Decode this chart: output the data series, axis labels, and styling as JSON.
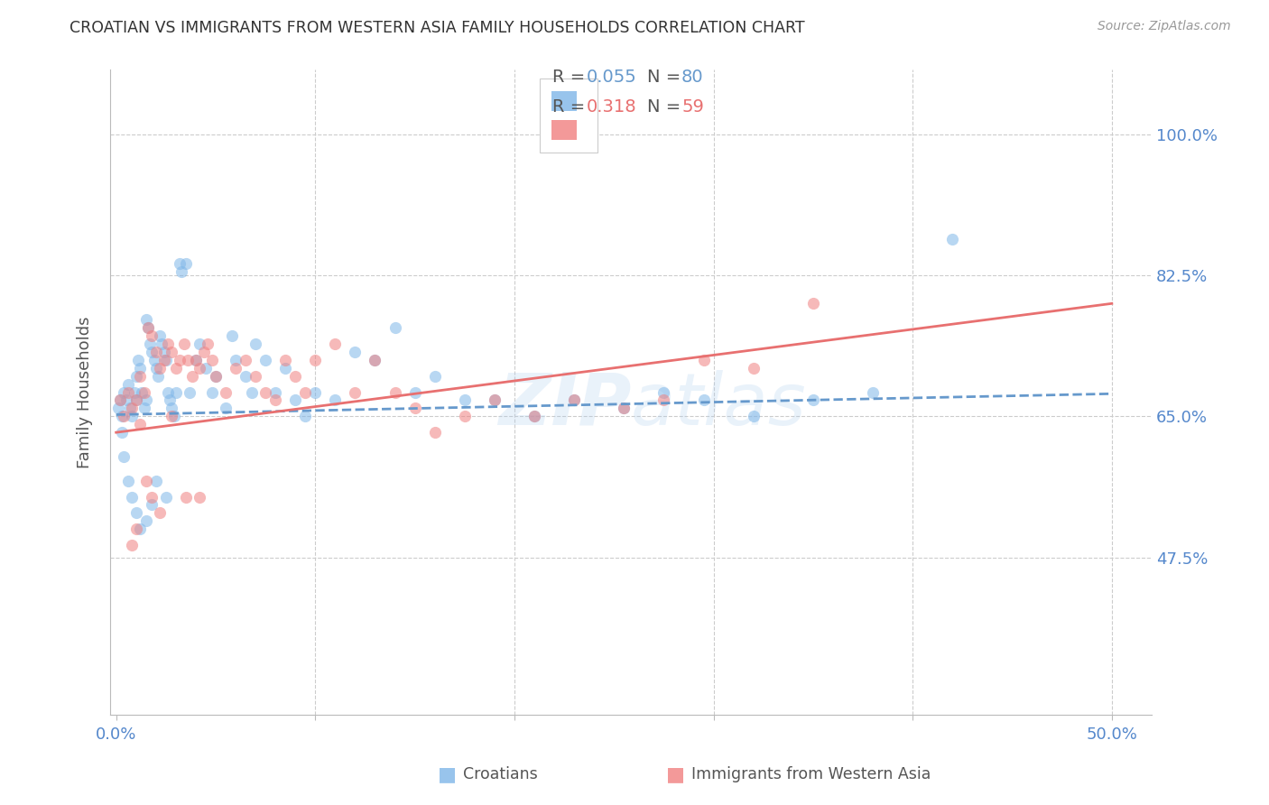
{
  "title": "CROATIAN VS IMMIGRANTS FROM WESTERN ASIA FAMILY HOUSEHOLDS CORRELATION CHART",
  "source": "Source: ZipAtlas.com",
  "ylabel": "Family Households",
  "ytick_labels": [
    "100.0%",
    "82.5%",
    "65.0%",
    "47.5%"
  ],
  "ytick_values": [
    1.0,
    0.825,
    0.65,
    0.475
  ],
  "xmin": -0.003,
  "xmax": 0.52,
  "ymin": 0.28,
  "ymax": 1.08,
  "legend_r1": "R =  0.055",
  "legend_n1": "N = 80",
  "legend_r2": "R =  0.318",
  "legend_n2": "N = 59",
  "color_blue": "#7EB6E8",
  "color_pink": "#F08080",
  "line_blue": "#6699CC",
  "line_pink": "#E87070",
  "title_color": "#333333",
  "axis_label_color": "#5588CC",
  "scatter_alpha": 0.55,
  "scatter_size": 90,
  "blue_x": [
    0.001,
    0.002,
    0.003,
    0.004,
    0.005,
    0.006,
    0.007,
    0.008,
    0.009,
    0.01,
    0.01,
    0.011,
    0.012,
    0.013,
    0.014,
    0.015,
    0.015,
    0.016,
    0.017,
    0.018,
    0.019,
    0.02,
    0.021,
    0.022,
    0.023,
    0.024,
    0.025,
    0.026,
    0.027,
    0.028,
    0.029,
    0.03,
    0.032,
    0.033,
    0.035,
    0.037,
    0.04,
    0.042,
    0.045,
    0.048,
    0.05,
    0.055,
    0.058,
    0.06,
    0.065,
    0.068,
    0.07,
    0.075,
    0.08,
    0.085,
    0.09,
    0.095,
    0.1,
    0.11,
    0.12,
    0.13,
    0.14,
    0.15,
    0.16,
    0.175,
    0.19,
    0.21,
    0.23,
    0.255,
    0.275,
    0.295,
    0.32,
    0.35,
    0.38,
    0.42,
    0.003,
    0.004,
    0.006,
    0.008,
    0.01,
    0.012,
    0.015,
    0.018,
    0.02,
    0.025
  ],
  "blue_y": [
    0.66,
    0.67,
    0.65,
    0.68,
    0.67,
    0.69,
    0.66,
    0.65,
    0.68,
    0.67,
    0.7,
    0.72,
    0.71,
    0.68,
    0.66,
    0.67,
    0.77,
    0.76,
    0.74,
    0.73,
    0.72,
    0.71,
    0.7,
    0.75,
    0.74,
    0.73,
    0.72,
    0.68,
    0.67,
    0.66,
    0.65,
    0.68,
    0.84,
    0.83,
    0.84,
    0.68,
    0.72,
    0.74,
    0.71,
    0.68,
    0.7,
    0.66,
    0.75,
    0.72,
    0.7,
    0.68,
    0.74,
    0.72,
    0.68,
    0.71,
    0.67,
    0.65,
    0.68,
    0.67,
    0.73,
    0.72,
    0.76,
    0.68,
    0.7,
    0.67,
    0.67,
    0.65,
    0.67,
    0.66,
    0.68,
    0.67,
    0.65,
    0.67,
    0.68,
    0.87,
    0.63,
    0.6,
    0.57,
    0.55,
    0.53,
    0.51,
    0.52,
    0.54,
    0.57,
    0.55
  ],
  "pink_x": [
    0.002,
    0.004,
    0.006,
    0.008,
    0.01,
    0.012,
    0.014,
    0.016,
    0.018,
    0.02,
    0.022,
    0.024,
    0.026,
    0.028,
    0.03,
    0.032,
    0.034,
    0.036,
    0.038,
    0.04,
    0.042,
    0.044,
    0.046,
    0.048,
    0.05,
    0.055,
    0.06,
    0.065,
    0.07,
    0.075,
    0.08,
    0.085,
    0.09,
    0.095,
    0.1,
    0.11,
    0.12,
    0.13,
    0.14,
    0.15,
    0.16,
    0.175,
    0.19,
    0.21,
    0.23,
    0.255,
    0.275,
    0.295,
    0.32,
    0.35,
    0.008,
    0.01,
    0.012,
    0.015,
    0.018,
    0.022,
    0.028,
    0.035,
    0.042
  ],
  "pink_y": [
    0.67,
    0.65,
    0.68,
    0.66,
    0.67,
    0.7,
    0.68,
    0.76,
    0.75,
    0.73,
    0.71,
    0.72,
    0.74,
    0.73,
    0.71,
    0.72,
    0.74,
    0.72,
    0.7,
    0.72,
    0.71,
    0.73,
    0.74,
    0.72,
    0.7,
    0.68,
    0.71,
    0.72,
    0.7,
    0.68,
    0.67,
    0.72,
    0.7,
    0.68,
    0.72,
    0.74,
    0.68,
    0.72,
    0.68,
    0.66,
    0.63,
    0.65,
    0.67,
    0.65,
    0.67,
    0.66,
    0.67,
    0.72,
    0.71,
    0.79,
    0.49,
    0.51,
    0.64,
    0.57,
    0.55,
    0.53,
    0.65,
    0.55,
    0.55
  ],
  "blue_trend_x": [
    0.0,
    0.5
  ],
  "blue_trend_y": [
    0.652,
    0.678
  ],
  "pink_trend_x": [
    0.0,
    0.5
  ],
  "pink_trend_y": [
    0.63,
    0.79
  ],
  "watermark_line1": "ZIP",
  "watermark_line2": "atlas",
  "grid_color": "#CCCCCC",
  "grid_style": "--",
  "xtick_positions": [
    0.0,
    0.1,
    0.2,
    0.3,
    0.4,
    0.5
  ],
  "xtick_labels_show": [
    "0.0%",
    "",
    "",
    "",
    "",
    "50.0%"
  ]
}
